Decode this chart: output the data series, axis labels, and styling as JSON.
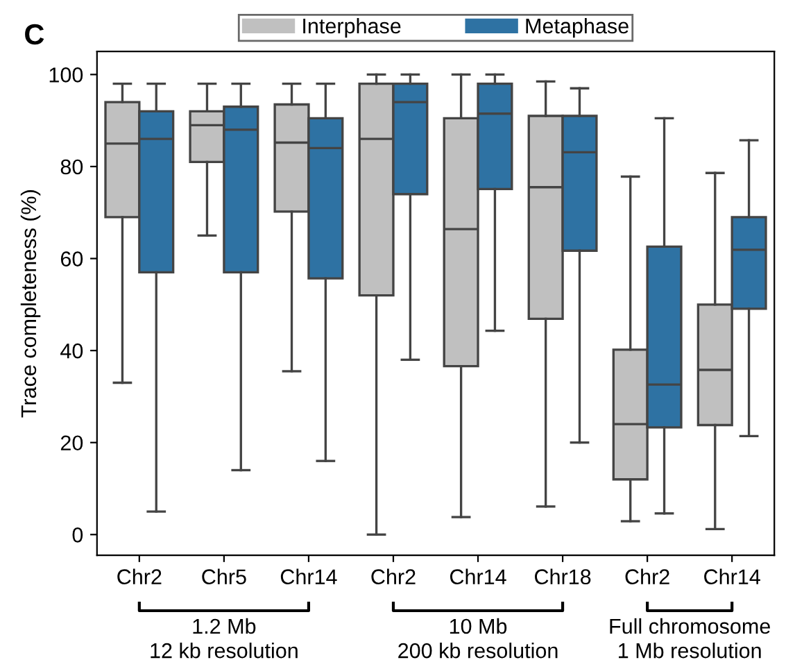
{
  "chart_data": {
    "type": "box",
    "title": "C",
    "ylabel": "Trace completeness (%)",
    "categories": [
      "Chr2",
      "Chr5",
      "Chr14",
      "Chr2",
      "Chr14",
      "Chr18",
      "Chr2",
      "Chr14"
    ],
    "ylim": [
      -4.5,
      105
    ],
    "yticks": [
      0,
      20,
      40,
      60,
      80,
      100
    ],
    "legend": "top",
    "annotations": [
      "1.2 Mb\n12 kb resolution",
      "10 Mb\n200 kb resolution",
      "Full chromosome\n1 Mb resolution"
    ],
    "series": [
      {
        "name": "Interphase",
        "color": "#c0c0c0",
        "boxes": [
          {
            "low": 33,
            "q1": 69,
            "median": 85,
            "q3": 94,
            "high": 98
          },
          {
            "low": 65,
            "q1": 81,
            "median": 89,
            "q3": 92,
            "high": 98
          },
          {
            "low": 35.5,
            "q1": 70.2,
            "median": 85.2,
            "q3": 93.5,
            "high": 98
          },
          {
            "low": 0,
            "q1": 52,
            "median": 86,
            "q3": 98,
            "high": 100
          },
          {
            "low": 3.8,
            "q1": 36.6,
            "median": 66.4,
            "q3": 90.5,
            "high": 100
          },
          {
            "low": 6.1,
            "q1": 46.9,
            "median": 75.5,
            "q3": 91,
            "high": 98.5
          },
          {
            "low": 2.9,
            "q1": 12,
            "median": 24,
            "q3": 40.2,
            "high": 77.8
          },
          {
            "low": 1.2,
            "q1": 23.8,
            "median": 35.8,
            "q3": 50,
            "high": 78.6
          }
        ]
      },
      {
        "name": "Metaphase",
        "color": "#2e72a3",
        "boxes": [
          {
            "low": 5,
            "q1": 57,
            "median": 86,
            "q3": 92,
            "high": 98
          },
          {
            "low": 14,
            "q1": 57,
            "median": 88,
            "q3": 93,
            "high": 98
          },
          {
            "low": 16,
            "q1": 55.7,
            "median": 84,
            "q3": 90.5,
            "high": 98
          },
          {
            "low": 38,
            "q1": 74,
            "median": 94,
            "q3": 98,
            "high": 100
          },
          {
            "low": 44.3,
            "q1": 75.1,
            "median": 91.5,
            "q3": 98,
            "high": 100
          },
          {
            "low": 20,
            "q1": 61.7,
            "median": 83.1,
            "q3": 91,
            "high": 97
          },
          {
            "low": 4.6,
            "q1": 23.3,
            "median": 32.6,
            "q3": 62.6,
            "high": 90.5
          },
          {
            "low": 21.4,
            "q1": 49.1,
            "median": 61.9,
            "q3": 69,
            "high": 85.7
          }
        ]
      }
    ]
  }
}
